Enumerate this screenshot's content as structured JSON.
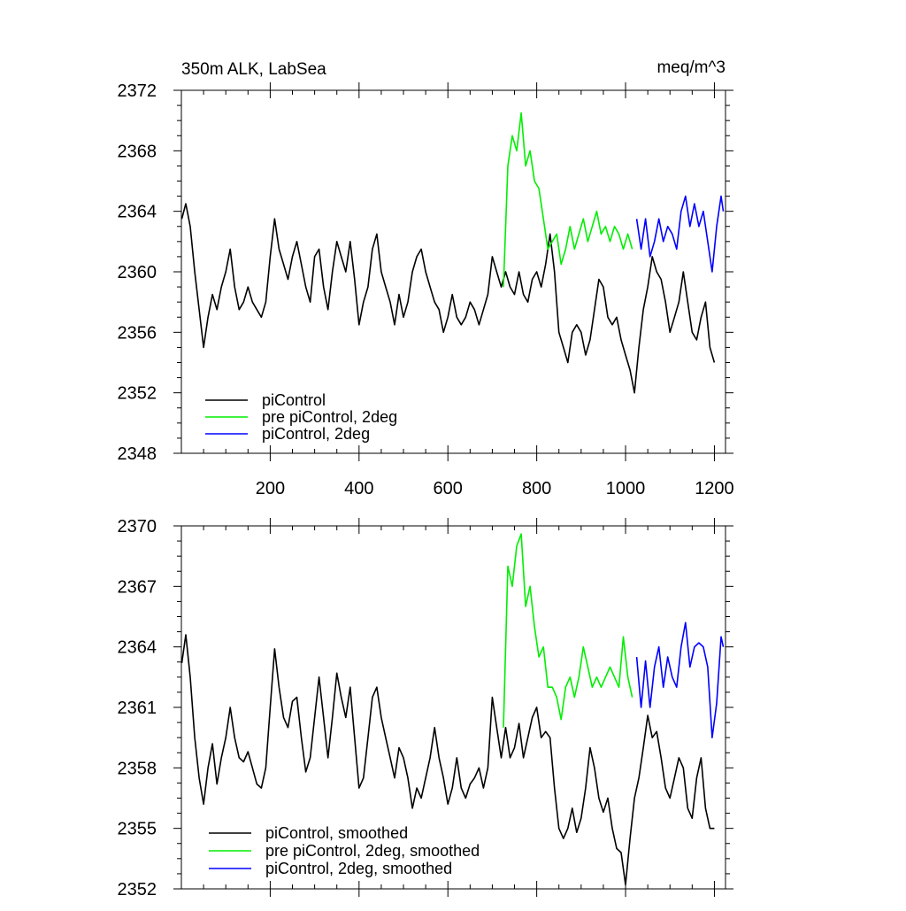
{
  "chart_data": [
    {
      "type": "line",
      "title": "350m ALK, LabSea",
      "units": "meq/m^3",
      "xlim": [
        0,
        1225
      ],
      "ylim": [
        2348,
        2372
      ],
      "x_ticks": [
        200,
        400,
        600,
        800,
        1000,
        1200
      ],
      "x_tick_labels": [
        "200",
        "400",
        "600",
        "800",
        "1000",
        "1200"
      ],
      "y_ticks": [
        2348,
        2352,
        2356,
        2360,
        2364,
        2368,
        2372
      ],
      "y_tick_labels": [
        "2348",
        "2352",
        "2356",
        "2360",
        "2364",
        "2368",
        "2372"
      ],
      "legend_position": "bottom-left",
      "series": [
        {
          "name": "piControl",
          "color": "#000000",
          "x": [
            1,
            10,
            20,
            30,
            40,
            50,
            60,
            70,
            80,
            90,
            100,
            110,
            120,
            130,
            140,
            150,
            160,
            170,
            180,
            190,
            200,
            210,
            220,
            230,
            240,
            250,
            260,
            270,
            280,
            290,
            300,
            310,
            320,
            330,
            340,
            350,
            360,
            370,
            380,
            390,
            400,
            410,
            420,
            430,
            440,
            450,
            460,
            470,
            480,
            490,
            500,
            510,
            520,
            530,
            540,
            550,
            560,
            570,
            580,
            590,
            600,
            610,
            620,
            630,
            640,
            650,
            660,
            670,
            680,
            690,
            700,
            710,
            720,
            730,
            740,
            750,
            760,
            770,
            780,
            790,
            800,
            810,
            820,
            830,
            840,
            850,
            860,
            870,
            880,
            890,
            900,
            910,
            920,
            930,
            940,
            950,
            960,
            970,
            980,
            990,
            1000,
            1010,
            1020,
            1030,
            1040,
            1050,
            1060,
            1070,
            1080,
            1090,
            1100,
            1110,
            1120,
            1130,
            1140,
            1150,
            1160,
            1170,
            1180,
            1190,
            1200
          ],
          "y": [
            2363.5,
            2364.5,
            2363,
            2360,
            2357.5,
            2355,
            2357,
            2358.5,
            2357.5,
            2359,
            2360,
            2361.5,
            2359,
            2357.5,
            2358,
            2359,
            2358,
            2357.5,
            2357,
            2358,
            2361,
            2363.5,
            2361.5,
            2360.5,
            2359.5,
            2361,
            2362,
            2360.5,
            2359,
            2358,
            2361,
            2361.5,
            2359,
            2357.5,
            2360,
            2362,
            2361,
            2360,
            2362,
            2359.5,
            2356.5,
            2358,
            2359,
            2361.5,
            2362.5,
            2360,
            2359,
            2358,
            2356.5,
            2358.5,
            2357,
            2358,
            2360,
            2361,
            2361.5,
            2360,
            2359,
            2358,
            2357.5,
            2356,
            2357,
            2358.5,
            2357,
            2356.5,
            2357,
            2358,
            2357.5,
            2356.5,
            2357.5,
            2358.5,
            2361,
            2360,
            2359,
            2360,
            2359,
            2358.5,
            2360,
            2358.5,
            2358,
            2359.5,
            2360,
            2359,
            2360.5,
            2362.5,
            2360,
            2356,
            2355,
            2354,
            2356,
            2356.5,
            2356,
            2354.5,
            2355.5,
            2357.5,
            2359.5,
            2359,
            2357,
            2356.5,
            2357,
            2355.5,
            2354.5,
            2353.5,
            2352,
            2355,
            2357.5,
            2359,
            2361,
            2360,
            2359.5,
            2358,
            2356,
            2357,
            2358,
            2360,
            2358,
            2356,
            2355.5,
            2357,
            2358,
            2355,
            2354
          ]
        },
        {
          "name": "pre piControl, 2deg",
          "color": "#00ee00",
          "x": [
            725,
            735,
            745,
            755,
            765,
            775,
            785,
            795,
            805,
            815,
            825,
            835,
            845,
            855,
            865,
            875,
            885,
            895,
            905,
            915,
            925,
            935,
            945,
            955,
            965,
            975,
            985,
            995,
            1005,
            1015
          ],
          "y": [
            2359,
            2367,
            2369,
            2368,
            2370.5,
            2367,
            2368,
            2366,
            2365.5,
            2363.5,
            2361.5,
            2362,
            2362.5,
            2360.5,
            2361.5,
            2363,
            2361.5,
            2362.5,
            2363.5,
            2362,
            2363,
            2364,
            2362.5,
            2363,
            2362,
            2363,
            2362.5,
            2361.5,
            2362.5,
            2361.5
          ]
        },
        {
          "name": "piControl, 2deg",
          "color": "#0000ff",
          "x": [
            1025,
            1035,
            1045,
            1055,
            1065,
            1075,
            1085,
            1095,
            1105,
            1115,
            1125,
            1135,
            1145,
            1155,
            1165,
            1175,
            1185,
            1195,
            1205,
            1215,
            1220
          ],
          "y": [
            2363.5,
            2361.5,
            2363.5,
            2361,
            2362,
            2363.5,
            2362,
            2363,
            2362.5,
            2361.5,
            2364,
            2365,
            2363,
            2364.5,
            2363,
            2364,
            2362,
            2360,
            2363,
            2365,
            2364
          ]
        }
      ]
    },
    {
      "type": "line",
      "title": "",
      "xlim": [
        0,
        1225
      ],
      "ylim": [
        2352,
        2370
      ],
      "x_ticks": [
        200,
        400,
        600,
        800,
        1000,
        1200
      ],
      "y_ticks": [
        2352,
        2355,
        2358,
        2361,
        2364,
        2367,
        2370
      ],
      "y_tick_labels": [
        "2352",
        "2355",
        "2358",
        "2361",
        "2364",
        "2367",
        "2370"
      ],
      "legend_position": "bottom-left",
      "series": [
        {
          "name": "piControl, smoothed",
          "color": "#000000",
          "x": [
            1,
            10,
            20,
            30,
            40,
            50,
            60,
            70,
            80,
            90,
            100,
            110,
            120,
            130,
            140,
            150,
            160,
            170,
            180,
            190,
            200,
            210,
            220,
            230,
            240,
            250,
            260,
            270,
            280,
            290,
            300,
            310,
            320,
            330,
            340,
            350,
            360,
            370,
            380,
            390,
            400,
            410,
            420,
            430,
            440,
            450,
            460,
            470,
            480,
            490,
            500,
            510,
            520,
            530,
            540,
            550,
            560,
            570,
            580,
            590,
            600,
            610,
            620,
            630,
            640,
            650,
            660,
            670,
            680,
            690,
            700,
            710,
            720,
            730,
            740,
            750,
            760,
            770,
            780,
            790,
            800,
            810,
            820,
            830,
            840,
            850,
            860,
            870,
            880,
            890,
            900,
            910,
            920,
            930,
            940,
            950,
            960,
            970,
            980,
            990,
            1000,
            1010,
            1020,
            1030,
            1040,
            1050,
            1060,
            1070,
            1080,
            1090,
            1100,
            1110,
            1120,
            1130,
            1140,
            1150,
            1160,
            1170,
            1180,
            1190,
            1200
          ],
          "y": [
            2363.2,
            2364.6,
            2362.5,
            2359.5,
            2357.5,
            2356.2,
            2358,
            2359.2,
            2357.2,
            2358.5,
            2359.5,
            2361,
            2359.5,
            2358.5,
            2358.3,
            2358.8,
            2358,
            2357.2,
            2357,
            2358,
            2361,
            2363.9,
            2362,
            2360.5,
            2360,
            2361.3,
            2361.5,
            2359.5,
            2357.8,
            2358.5,
            2360.5,
            2362.5,
            2360.5,
            2358.5,
            2360.5,
            2362.7,
            2361.5,
            2360.5,
            2362,
            2359.5,
            2357,
            2357.5,
            2359.5,
            2361.5,
            2362,
            2360.5,
            2359.5,
            2358.5,
            2357.5,
            2359,
            2358.5,
            2357.5,
            2356,
            2357,
            2356.5,
            2357.5,
            2358.5,
            2360,
            2358.5,
            2357.5,
            2356.2,
            2357,
            2358.5,
            2357,
            2356.5,
            2357.2,
            2357.5,
            2358,
            2357,
            2358,
            2361.5,
            2360,
            2358.5,
            2360,
            2358.5,
            2359,
            2360.2,
            2358.5,
            2359.5,
            2360.5,
            2361,
            2359.5,
            2359.8,
            2359.5,
            2357,
            2355,
            2354.5,
            2355,
            2356,
            2354.8,
            2355.5,
            2357,
            2359,
            2358,
            2356.5,
            2355.8,
            2356.5,
            2355,
            2354,
            2353.8,
            2352.2,
            2354.5,
            2356.5,
            2357.5,
            2359,
            2360.6,
            2359.5,
            2359.8,
            2358.5,
            2357,
            2356.5,
            2357.5,
            2358.5,
            2358,
            2356,
            2355.5,
            2357.5,
            2358.5,
            2356,
            2355,
            2355
          ]
        },
        {
          "name": "pre piControl, 2deg, smoothed",
          "color": "#00ee00",
          "x": [
            725,
            735,
            745,
            755,
            765,
            775,
            785,
            795,
            805,
            815,
            825,
            835,
            845,
            855,
            865,
            875,
            885,
            895,
            905,
            915,
            925,
            935,
            945,
            955,
            965,
            975,
            985,
            995,
            1005,
            1015
          ],
          "y": [
            2360,
            2368,
            2367,
            2369,
            2369.6,
            2366,
            2367,
            2365,
            2363.5,
            2364,
            2362,
            2362,
            2361.5,
            2360.4,
            2362,
            2362.5,
            2361.5,
            2362.5,
            2364,
            2363,
            2362,
            2362.5,
            2362,
            2362.5,
            2363,
            2362.5,
            2362,
            2364.5,
            2362.5,
            2361.5
          ]
        },
        {
          "name": "piControl, 2deg, smoothed",
          "color": "#0000ff",
          "x": [
            1025,
            1035,
            1045,
            1055,
            1065,
            1075,
            1085,
            1095,
            1105,
            1115,
            1125,
            1135,
            1145,
            1155,
            1165,
            1175,
            1185,
            1195,
            1205,
            1215,
            1220
          ],
          "y": [
            2363.5,
            2361,
            2363.3,
            2361,
            2363,
            2364,
            2362,
            2363.5,
            2362.5,
            2362,
            2364,
            2365.2,
            2363,
            2364,
            2364.2,
            2364,
            2363,
            2359.5,
            2361.2,
            2364.5,
            2364
          ]
        }
      ]
    }
  ]
}
